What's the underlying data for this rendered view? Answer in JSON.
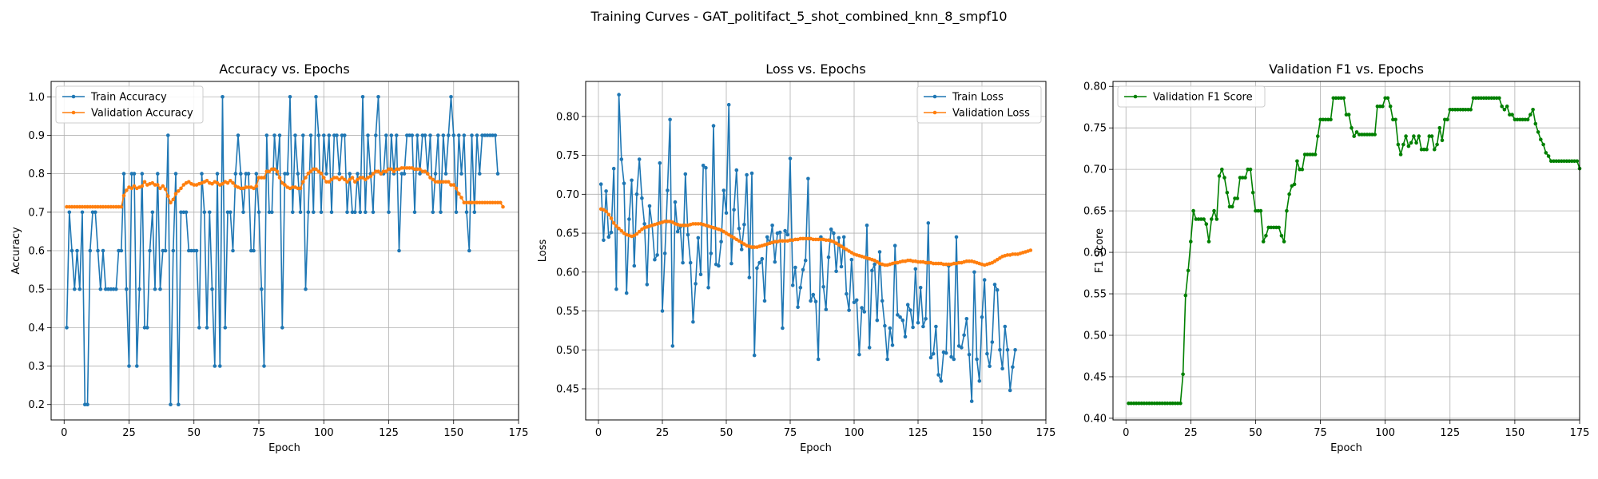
{
  "figure": {
    "suptitle": "Training Curves - GAT_politifact_5_shot_combined_knn_8_smpf10"
  },
  "colors": {
    "train": "#1f77b4",
    "validation": "#ff7f0e",
    "f1": "#008000",
    "grid": "#b0b0b0"
  },
  "chart_data": [
    {
      "type": "line",
      "title": "Accuracy vs. Epochs",
      "xlabel": "Epoch",
      "ylabel": "Accuracy",
      "xlim": [
        -5,
        175
      ],
      "ylim": [
        0.16,
        1.04
      ],
      "xticks": [
        0,
        25,
        50,
        75,
        100,
        125,
        150,
        175
      ],
      "yticks": [
        0.2,
        0.3,
        0.4,
        0.5,
        0.6,
        0.7,
        0.8,
        0.9,
        1.0
      ],
      "ytick_labels": [
        "0.2",
        "0.3",
        "0.4",
        "0.5",
        "0.6",
        "0.7",
        "0.8",
        "0.9",
        "1.0"
      ],
      "grid": true,
      "legend": "upper-left",
      "series": [
        {
          "name": "Train Accuracy",
          "color": "#1f77b4",
          "x_start": 1,
          "values": [
            0.4,
            0.7,
            0.6,
            0.5,
            0.6,
            0.5,
            0.7,
            0.2,
            0.2,
            0.6,
            0.7,
            0.7,
            0.6,
            0.5,
            0.6,
            0.5,
            0.5,
            0.5,
            0.5,
            0.5,
            0.6,
            0.6,
            0.8,
            0.5,
            0.3,
            0.8,
            0.8,
            0.3,
            0.5,
            0.8,
            0.4,
            0.4,
            0.6,
            0.7,
            0.5,
            0.8,
            0.5,
            0.6,
            0.6,
            0.9,
            0.2,
            0.6,
            0.8,
            0.2,
            0.7,
            0.7,
            0.7,
            0.6,
            0.6,
            0.6,
            0.6,
            0.4,
            0.8,
            0.7,
            0.4,
            0.7,
            0.5,
            0.3,
            0.8,
            0.3,
            1.0,
            0.4,
            0.7,
            0.7,
            0.6,
            0.8,
            0.9,
            0.8,
            0.7,
            0.8,
            0.8,
            0.6,
            0.6,
            0.8,
            0.7,
            0.5,
            0.3,
            0.9,
            0.7,
            0.7,
            0.9,
            0.8,
            0.9,
            0.4,
            0.8,
            0.8,
            1.0,
            0.7,
            0.9,
            0.8,
            0.7,
            0.9,
            0.5,
            0.7,
            0.9,
            0.7,
            1.0,
            0.9,
            0.7,
            0.9,
            0.8,
            0.9,
            0.7,
            0.9,
            0.9,
            0.8,
            0.9,
            0.9,
            0.7,
            0.8,
            0.7,
            0.7,
            0.8,
            0.7,
            1.0,
            0.7,
            0.9,
            0.8,
            0.7,
            0.9,
            1.0,
            0.8,
            0.8,
            0.9,
            0.7,
            0.9,
            0.8,
            0.9,
            0.6,
            0.8,
            0.8,
            0.9,
            0.9,
            0.9,
            0.7,
            0.9,
            0.8,
            0.9,
            0.9,
            0.8,
            0.9,
            0.7,
            0.8,
            0.9,
            0.7,
            0.9,
            0.8,
            0.9,
            1.0,
            0.9,
            0.7,
            0.9,
            0.8,
            0.9,
            0.7,
            0.6,
            0.9,
            0.7,
            0.9,
            0.8,
            0.9,
            0.9,
            0.9,
            0.9,
            0.9,
            0.9,
            0.8
          ]
        },
        {
          "name": "Validation Accuracy",
          "color": "#ff7f0e",
          "x_start": 1,
          "values": [
            0.714,
            0.714,
            0.714,
            0.714,
            0.714,
            0.714,
            0.714,
            0.714,
            0.714,
            0.714,
            0.714,
            0.714,
            0.714,
            0.714,
            0.714,
            0.714,
            0.714,
            0.714,
            0.714,
            0.714,
            0.714,
            0.714,
            0.743,
            0.757,
            0.765,
            0.762,
            0.768,
            0.762,
            0.765,
            0.768,
            0.779,
            0.771,
            0.774,
            0.776,
            0.771,
            0.771,
            0.762,
            0.768,
            0.76,
            0.742,
            0.725,
            0.733,
            0.748,
            0.755,
            0.762,
            0.771,
            0.776,
            0.779,
            0.774,
            0.771,
            0.771,
            0.774,
            0.776,
            0.779,
            0.782,
            0.776,
            0.774,
            0.779,
            0.776,
            0.771,
            0.774,
            0.779,
            0.776,
            0.782,
            0.776,
            0.768,
            0.765,
            0.762,
            0.762,
            0.765,
            0.765,
            0.765,
            0.762,
            0.768,
            0.79,
            0.79,
            0.79,
            0.806,
            0.806,
            0.812,
            0.812,
            0.806,
            0.79,
            0.776,
            0.771,
            0.765,
            0.762,
            0.765,
            0.765,
            0.762,
            0.762,
            0.779,
            0.79,
            0.801,
            0.806,
            0.812,
            0.812,
            0.806,
            0.801,
            0.79,
            0.779,
            0.779,
            0.785,
            0.79,
            0.79,
            0.785,
            0.79,
            0.785,
            0.779,
            0.785,
            0.79,
            0.779,
            0.785,
            0.79,
            0.79,
            0.785,
            0.79,
            0.793,
            0.8,
            0.806,
            0.806,
            0.8,
            0.806,
            0.806,
            0.812,
            0.812,
            0.806,
            0.812,
            0.812,
            0.815,
            0.815,
            0.815,
            0.815,
            0.815,
            0.812,
            0.812,
            0.812,
            0.806,
            0.806,
            0.8,
            0.79,
            0.785,
            0.779,
            0.779,
            0.779,
            0.779,
            0.779,
            0.779,
            0.771,
            0.771,
            0.762,
            0.748,
            0.738,
            0.725,
            0.725,
            0.725,
            0.725,
            0.725,
            0.725,
            0.725,
            0.725,
            0.725,
            0.725,
            0.725,
            0.725,
            0.725,
            0.725,
            0.725,
            0.714
          ]
        }
      ]
    },
    {
      "type": "line",
      "title": "Loss vs. Epochs",
      "xlabel": "Epoch",
      "ylabel": "Loss",
      "xlim": [
        -5,
        175
      ],
      "ylim": [
        0.41,
        0.845
      ],
      "xticks": [
        0,
        25,
        50,
        75,
        100,
        125,
        150,
        175
      ],
      "yticks": [
        0.45,
        0.5,
        0.55,
        0.6,
        0.65,
        0.7,
        0.75,
        0.8
      ],
      "ytick_labels": [
        "0.45",
        "0.50",
        "0.55",
        "0.60",
        "0.65",
        "0.70",
        "0.75",
        "0.80"
      ],
      "grid": true,
      "legend": "upper-right",
      "series": [
        {
          "name": "Train Loss",
          "color": "#1f77b4",
          "x_start": 1,
          "values": [
            0.713,
            0.641,
            0.704,
            0.645,
            0.651,
            0.733,
            0.578,
            0.828,
            0.745,
            0.714,
            0.573,
            0.668,
            0.718,
            0.608,
            0.7,
            0.745,
            0.695,
            0.662,
            0.584,
            0.685,
            0.66,
            0.616,
            0.622,
            0.74,
            0.55,
            0.624,
            0.705,
            0.796,
            0.505,
            0.69,
            0.652,
            0.658,
            0.612,
            0.726,
            0.648,
            0.612,
            0.536,
            0.585,
            0.644,
            0.597,
            0.737,
            0.734,
            0.58,
            0.624,
            0.788,
            0.61,
            0.608,
            0.639,
            0.705,
            0.676,
            0.815,
            0.611,
            0.68,
            0.731,
            0.656,
            0.629,
            0.661,
            0.725,
            0.593,
            0.727,
            0.493,
            0.605,
            0.612,
            0.617,
            0.563,
            0.645,
            0.637,
            0.66,
            0.613,
            0.65,
            0.651,
            0.528,
            0.653,
            0.648,
            0.746,
            0.583,
            0.606,
            0.555,
            0.58,
            0.603,
            0.615,
            0.72,
            0.563,
            0.571,
            0.562,
            0.488,
            0.645,
            0.581,
            0.552,
            0.619,
            0.655,
            0.65,
            0.601,
            0.644,
            0.607,
            0.645,
            0.572,
            0.551,
            0.616,
            0.561,
            0.564,
            0.494,
            0.554,
            0.549,
            0.66,
            0.503,
            0.602,
            0.61,
            0.538,
            0.626,
            0.563,
            0.531,
            0.488,
            0.528,
            0.506,
            0.634,
            0.545,
            0.542,
            0.538,
            0.517,
            0.558,
            0.551,
            0.529,
            0.604,
            0.535,
            0.58,
            0.53,
            0.54,
            0.663,
            0.49,
            0.495,
            0.53,
            0.468,
            0.46,
            0.497,
            0.496,
            0.608,
            0.491,
            0.488,
            0.645,
            0.505,
            0.503,
            0.519,
            0.54,
            0.494,
            0.434,
            0.6,
            0.488,
            0.46,
            0.542,
            0.59,
            0.495,
            0.479,
            0.51,
            0.584,
            0.577,
            0.5,
            0.476,
            0.53,
            0.5,
            0.448,
            0.478,
            0.5
          ]
        },
        {
          "name": "Validation Loss",
          "color": "#ff7f0e",
          "x_start": 1,
          "values": [
            0.681,
            0.68,
            0.678,
            0.674,
            0.669,
            0.663,
            0.659,
            0.656,
            0.653,
            0.65,
            0.648,
            0.647,
            0.646,
            0.647,
            0.649,
            0.652,
            0.655,
            0.657,
            0.658,
            0.659,
            0.66,
            0.661,
            0.662,
            0.663,
            0.664,
            0.665,
            0.665,
            0.665,
            0.664,
            0.662,
            0.661,
            0.66,
            0.66,
            0.66,
            0.66,
            0.661,
            0.662,
            0.662,
            0.662,
            0.662,
            0.661,
            0.66,
            0.659,
            0.658,
            0.657,
            0.656,
            0.655,
            0.654,
            0.652,
            0.65,
            0.648,
            0.646,
            0.644,
            0.642,
            0.64,
            0.638,
            0.636,
            0.634,
            0.633,
            0.632,
            0.632,
            0.632,
            0.633,
            0.634,
            0.635,
            0.636,
            0.637,
            0.638,
            0.639,
            0.639,
            0.64,
            0.64,
            0.64,
            0.64,
            0.641,
            0.641,
            0.642,
            0.642,
            0.643,
            0.643,
            0.643,
            0.643,
            0.643,
            0.642,
            0.642,
            0.642,
            0.642,
            0.642,
            0.641,
            0.641,
            0.64,
            0.639,
            0.637,
            0.635,
            0.633,
            0.631,
            0.629,
            0.627,
            0.625,
            0.623,
            0.622,
            0.621,
            0.62,
            0.619,
            0.618,
            0.617,
            0.616,
            0.615,
            0.613,
            0.611,
            0.61,
            0.609,
            0.609,
            0.61,
            0.611,
            0.612,
            0.612,
            0.613,
            0.614,
            0.614,
            0.615,
            0.615,
            0.614,
            0.614,
            0.613,
            0.613,
            0.613,
            0.612,
            0.612,
            0.612,
            0.611,
            0.611,
            0.611,
            0.611,
            0.61,
            0.61,
            0.61,
            0.61,
            0.611,
            0.611,
            0.612,
            0.612,
            0.613,
            0.614,
            0.614,
            0.614,
            0.613,
            0.612,
            0.611,
            0.61,
            0.609,
            0.61,
            0.611,
            0.612,
            0.614,
            0.616,
            0.618,
            0.62,
            0.621,
            0.622,
            0.622,
            0.623,
            0.623,
            0.623,
            0.624,
            0.625,
            0.626,
            0.627,
            0.628
          ]
        }
      ]
    },
    {
      "type": "line",
      "title": "Validation F1 vs. Epochs",
      "xlabel": "Epoch",
      "ylabel": "F1 Score",
      "xlim": [
        -5,
        175
      ],
      "ylim": [
        0.398,
        0.806
      ],
      "xticks": [
        0,
        25,
        50,
        75,
        100,
        125,
        150,
        175
      ],
      "yticks": [
        0.4,
        0.45,
        0.5,
        0.55,
        0.6,
        0.65,
        0.7,
        0.75,
        0.8
      ],
      "ytick_labels": [
        "0.40",
        "0.45",
        "0.50",
        "0.55",
        "0.60",
        "0.65",
        "0.70",
        "0.75",
        "0.80"
      ],
      "grid": true,
      "legend": "upper-left",
      "series": [
        {
          "name": "Validation F1 Score",
          "color": "#008000",
          "x_start": 1,
          "values": [
            0.418,
            0.418,
            0.418,
            0.418,
            0.418,
            0.418,
            0.418,
            0.418,
            0.418,
            0.418,
            0.418,
            0.418,
            0.418,
            0.418,
            0.418,
            0.418,
            0.418,
            0.418,
            0.418,
            0.418,
            0.418,
            0.453,
            0.548,
            0.578,
            0.613,
            0.65,
            0.64,
            0.64,
            0.64,
            0.64,
            0.634,
            0.613,
            0.64,
            0.65,
            0.64,
            0.692,
            0.7,
            0.69,
            0.672,
            0.655,
            0.655,
            0.665,
            0.665,
            0.69,
            0.69,
            0.69,
            0.7,
            0.7,
            0.672,
            0.65,
            0.65,
            0.65,
            0.613,
            0.62,
            0.63,
            0.63,
            0.63,
            0.63,
            0.63,
            0.62,
            0.613,
            0.65,
            0.67,
            0.68,
            0.682,
            0.71,
            0.7,
            0.7,
            0.718,
            0.718,
            0.718,
            0.718,
            0.718,
            0.74,
            0.76,
            0.76,
            0.76,
            0.76,
            0.76,
            0.786,
            0.786,
            0.786,
            0.786,
            0.786,
            0.766,
            0.766,
            0.75,
            0.74,
            0.745,
            0.742,
            0.742,
            0.742,
            0.742,
            0.742,
            0.742,
            0.742,
            0.776,
            0.776,
            0.776,
            0.786,
            0.786,
            0.776,
            0.76,
            0.76,
            0.73,
            0.718,
            0.73,
            0.74,
            0.728,
            0.732,
            0.74,
            0.732,
            0.74,
            0.724,
            0.724,
            0.724,
            0.74,
            0.74,
            0.724,
            0.73,
            0.75,
            0.735,
            0.76,
            0.76,
            0.772,
            0.772,
            0.772,
            0.772,
            0.772,
            0.772,
            0.772,
            0.772,
            0.772,
            0.786,
            0.786,
            0.786,
            0.786,
            0.786,
            0.786,
            0.786,
            0.786,
            0.786,
            0.786,
            0.786,
            0.776,
            0.772,
            0.776,
            0.766,
            0.766,
            0.76,
            0.76,
            0.76,
            0.76,
            0.76,
            0.76,
            0.766,
            0.772,
            0.755,
            0.745,
            0.736,
            0.73,
            0.72,
            0.716,
            0.71,
            0.71,
            0.71,
            0.71,
            0.71,
            0.71,
            0.71,
            0.71,
            0.71,
            0.71,
            0.71,
            0.701
          ]
        }
      ]
    }
  ]
}
